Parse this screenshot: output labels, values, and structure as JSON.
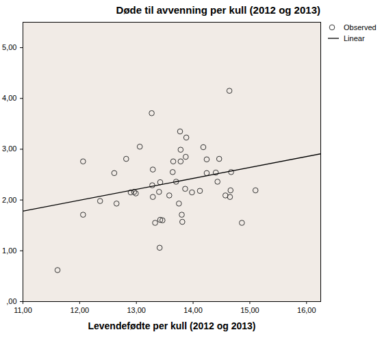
{
  "chart_data": {
    "type": "scatter",
    "title": "Døde til avvenning per kull (2012 og 2013)",
    "x_label": "Levendefødte per kull (2012 og 2013)",
    "xlim": [
      11,
      16.25
    ],
    "ylim": [
      0,
      5.5
    ],
    "xticks": [
      {
        "value": 11,
        "label": "11,00"
      },
      {
        "value": 12,
        "label": "12,00"
      },
      {
        "value": 13,
        "label": "13,00"
      },
      {
        "value": 14,
        "label": "14,00"
      },
      {
        "value": 15,
        "label": "15,00"
      },
      {
        "value": 16,
        "label": "16,00"
      }
    ],
    "yticks": [
      {
        "value": 0,
        "label": ",00"
      },
      {
        "value": 1,
        "label": "1,00"
      },
      {
        "value": 2,
        "label": "2,00"
      },
      {
        "value": 3,
        "label": "3,00"
      },
      {
        "value": 4,
        "label": "4,00"
      },
      {
        "value": 5,
        "label": "5,00"
      }
    ],
    "grid": false,
    "legend": "right",
    "series": [
      {
        "name": "Observed",
        "type": "scatter",
        "marker": "circle",
        "color": "#333333",
        "x": [
          11.61,
          12.06,
          12.06,
          12.36,
          12.61,
          12.65,
          12.82,
          12.9,
          12.96,
          12.99,
          13.06,
          13.27,
          13.28,
          13.29,
          13.29,
          13.33,
          13.4,
          13.42,
          13.42,
          13.41,
          13.46,
          13.58,
          13.64,
          13.65,
          13.7,
          13.75,
          13.77,
          13.78,
          13.78,
          13.8,
          13.81,
          13.86,
          13.87,
          13.88,
          13.98,
          14.12,
          14.18,
          14.24,
          14.24,
          14.4,
          14.43,
          14.46,
          14.57,
          14.65,
          14.64,
          14.67,
          14.66,
          14.86,
          15.1
        ],
        "values": [
          0.62,
          2.76,
          1.71,
          1.98,
          2.53,
          1.93,
          2.81,
          2.15,
          2.16,
          2.13,
          3.05,
          3.71,
          2.29,
          2.6,
          2.06,
          1.55,
          2.16,
          1.61,
          2.35,
          1.06,
          1.6,
          2.09,
          2.55,
          2.76,
          2.36,
          1.93,
          3.35,
          2.99,
          2.76,
          1.71,
          1.57,
          2.22,
          2.85,
          3.23,
          2.15,
          2.18,
          3.04,
          2.8,
          2.53,
          2.54,
          2.36,
          2.81,
          2.09,
          2.06,
          4.15,
          2.55,
          2.19,
          1.55,
          2.19
        ]
      },
      {
        "name": "Linear",
        "type": "line",
        "line_style": "solid",
        "color": "#000000",
        "x": [
          11,
          16.25
        ],
        "values": [
          1.78,
          2.91
        ]
      }
    ]
  }
}
